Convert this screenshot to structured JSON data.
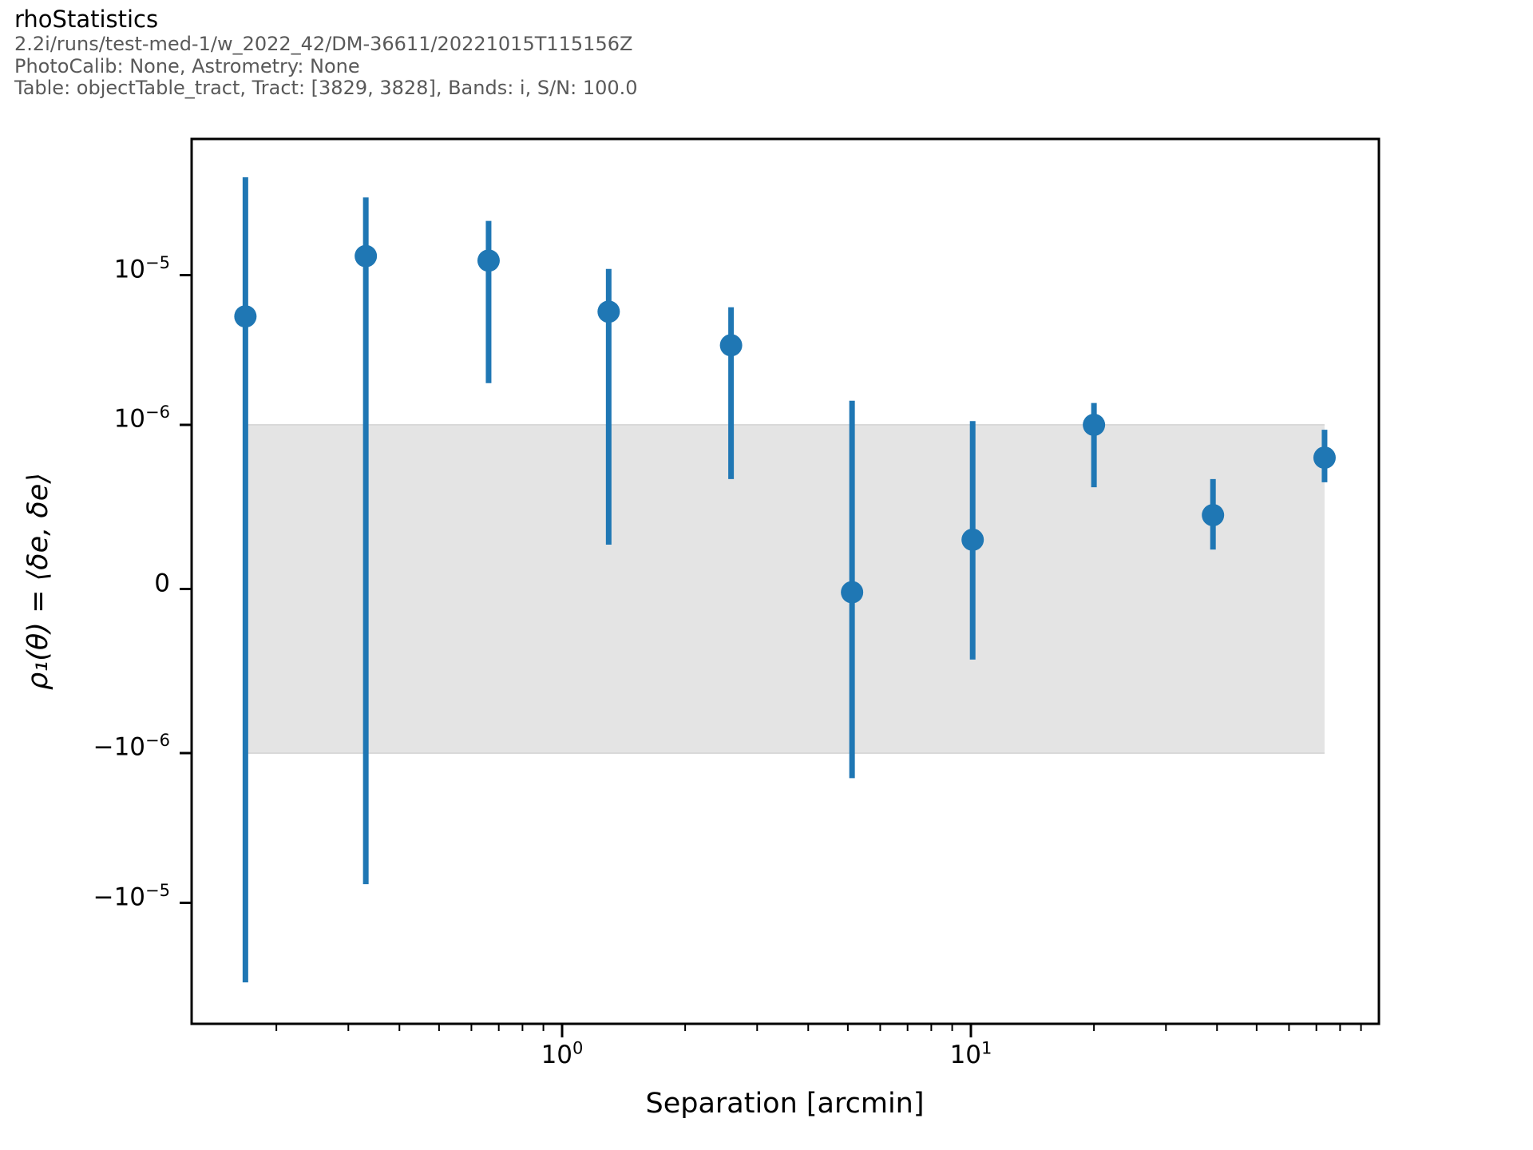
{
  "header": {
    "title": "rhoStatistics",
    "line1": "2.2i/runs/test-med-1/w_2022_42/DM-36611/20221015T115156Z",
    "line2": "PhotoCalib: None, Astrometry: None",
    "line3": "Table: objectTable_tract, Tract: [3829, 3828], Bands: i, S/N: 100.0"
  },
  "axes": {
    "xlabel": "Separation [arcmin]",
    "ylabel": "ρ₁(θ) = ⟨δe, δe⟩"
  },
  "chart_data": {
    "type": "scatter",
    "title": "rhoStatistics",
    "xlabel": "Separation [arcmin]",
    "ylabel": "rho_1(theta) = <de,de>",
    "x_scale": "log",
    "y_scale": "symlog",
    "y_linthresh": 1e-06,
    "xlim": [
      0.124,
      100
    ],
    "ylim": [
      -6.6e-05,
      8.3e-05
    ],
    "grid": false,
    "legend": null,
    "x": [
      0.168,
      0.331,
      0.661,
      1.3,
      2.59,
      5.12,
      10.1,
      20.0,
      39.1,
      73.3
    ],
    "y": [
      5.3e-06,
      1.34e-05,
      1.25e-05,
      5.7e-06,
      3.4e-06,
      -2e-08,
      3e-07,
      1e-06,
      4.5e-07,
      8e-07
    ],
    "y_err_high": [
      4.5e-05,
      3.3e-05,
      2.3e-05,
      1.1e-05,
      6.1e-06,
      1.45e-06,
      1.06e-06,
      1.4e-06,
      6.7e-07,
      9.7e-07
    ],
    "y_err_low": [
      -3.4e-05,
      -7.5e-06,
      1.9e-06,
      2.7e-07,
      6.7e-07,
      -1.47e-06,
      -4.3e-07,
      6.2e-07,
      2.4e-07,
      6.5e-07
    ],
    "x_major_ticks": [
      {
        "text": "10",
        "sup": "0",
        "value": 1
      },
      {
        "text": "10",
        "sup": "1",
        "value": 10
      }
    ],
    "x_minor_ticks": [
      0.2,
      0.3,
      0.4,
      0.5,
      0.6,
      0.7,
      0.8,
      0.9,
      2,
      3,
      4,
      5,
      6,
      7,
      8,
      9,
      20,
      30,
      40,
      50,
      60,
      70,
      80,
      90
    ],
    "y_major_ticks": [
      {
        "text": "10",
        "sup": "−5",
        "value": 1e-05
      },
      {
        "text": "10",
        "sup": "−6",
        "value": 1e-06
      },
      {
        "text": "0",
        "sup": "",
        "value": 0
      },
      {
        "text": "−10",
        "sup": "−6",
        "value": -1e-06
      },
      {
        "text": "−10",
        "sup": "−5",
        "value": -1e-05
      }
    ],
    "shaded_band": {
      "ymin": -1e-06,
      "ymax": 1e-06,
      "color": "#e4e4e4",
      "edge_color": "#d9d9d9"
    },
    "marker_color": "#1f77b4",
    "spine_color": "#000000"
  }
}
